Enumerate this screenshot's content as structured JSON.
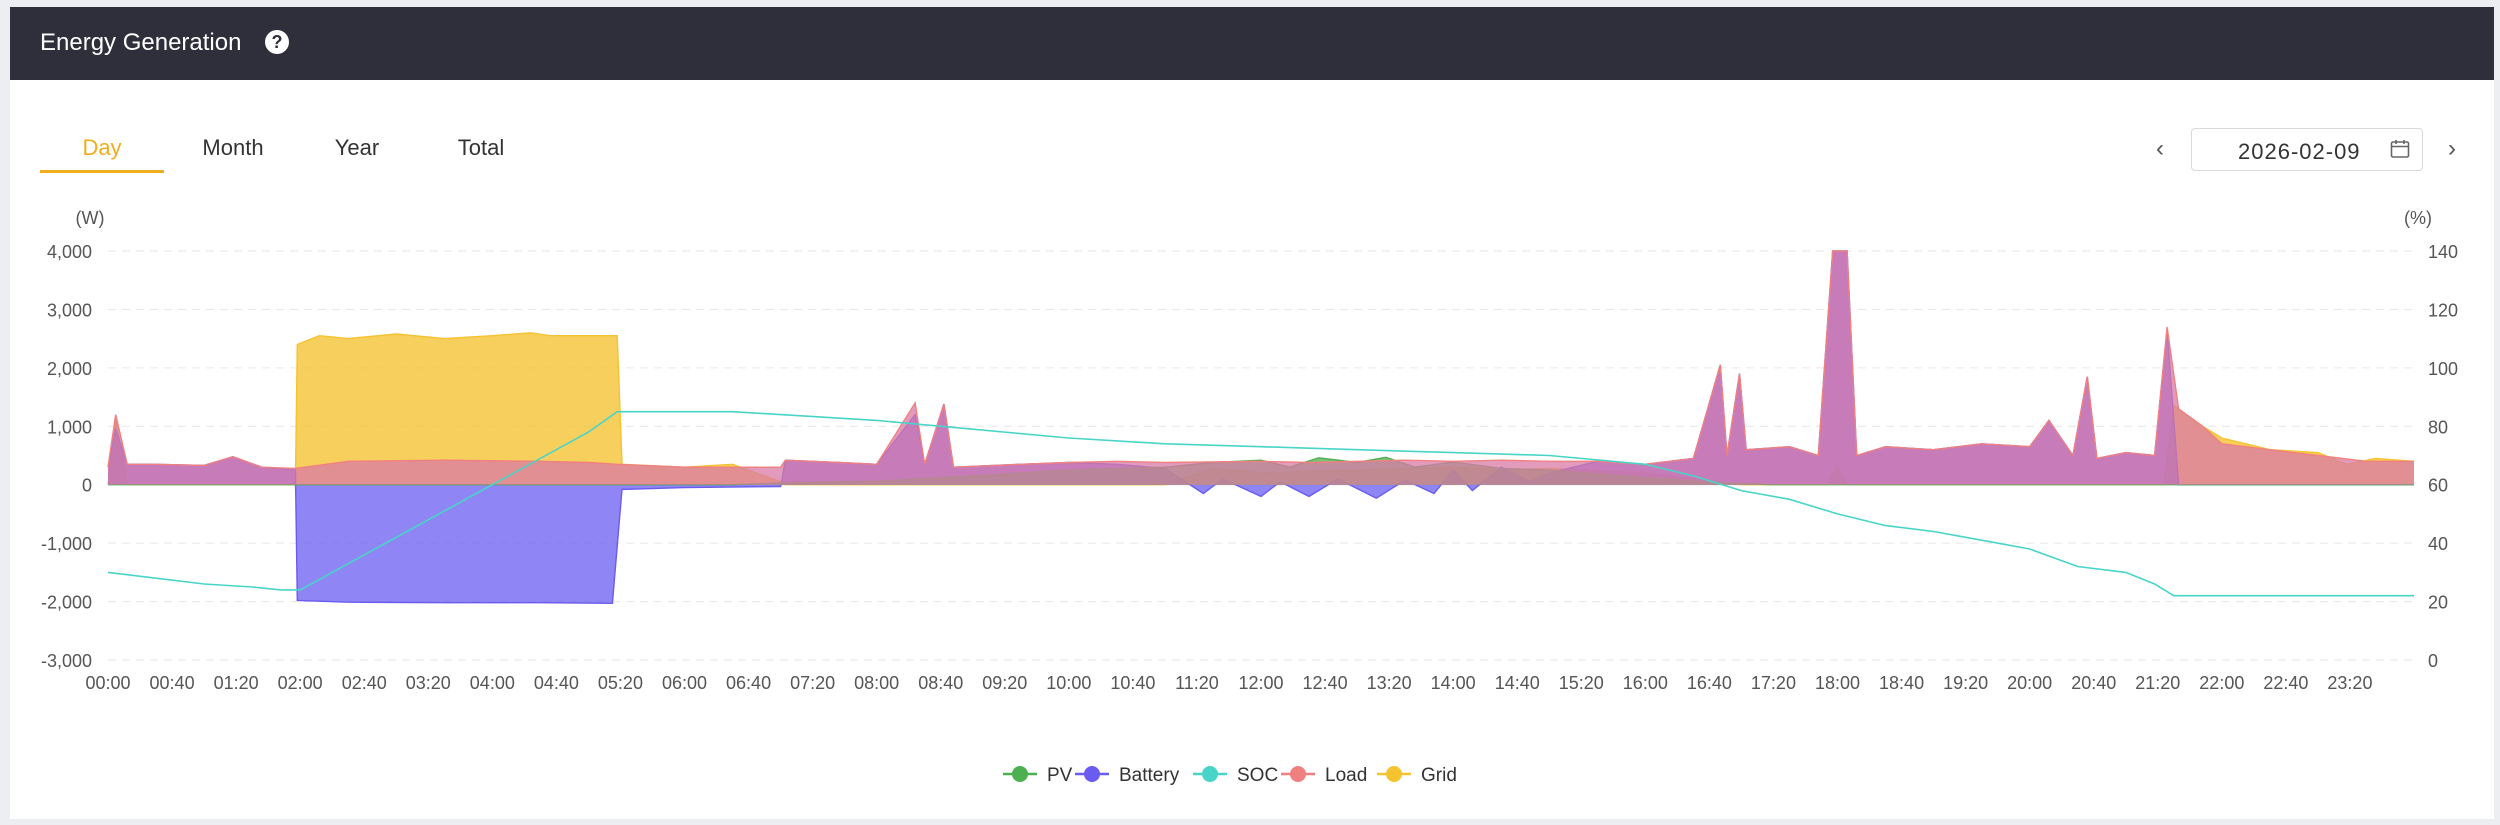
{
  "header": {
    "title": "Energy Generation",
    "help_icon": "question-circle-icon"
  },
  "tabs": [
    {
      "label": "Day",
      "active": true
    },
    {
      "label": "Month",
      "active": false
    },
    {
      "label": "Year",
      "active": false
    },
    {
      "label": "Total",
      "active": false
    }
  ],
  "date_picker": {
    "value": "2026-02-09",
    "icon": "calendar-icon",
    "prev_icon": "chevron-left-icon",
    "next_icon": "chevron-right-icon"
  },
  "colors": {
    "PV": "#4caf50",
    "Battery": "#6a5cf0",
    "SOC": "#48d5c8",
    "Load": "#f08080",
    "Grid": "#f5c230",
    "accent": "#f0ad1e",
    "header_bg": "#2f2e3b"
  },
  "chart_data": {
    "type": "area",
    "x_tick_labels": [
      "00:00",
      "00:40",
      "01:20",
      "02:00",
      "02:40",
      "03:20",
      "04:00",
      "04:40",
      "05:20",
      "06:00",
      "06:40",
      "07:20",
      "08:00",
      "08:40",
      "09:20",
      "10:00",
      "10:40",
      "11:20",
      "12:00",
      "12:40",
      "13:20",
      "14:00",
      "14:40",
      "15:20",
      "16:00",
      "16:40",
      "17:20",
      "18:00",
      "18:40",
      "19:20",
      "20:00",
      "20:40",
      "21:20",
      "22:00",
      "22:40",
      "23:20"
    ],
    "x_range_hours": [
      0,
      24
    ],
    "y_left": {
      "unit": "(W)",
      "ylim": [
        -3000,
        4000
      ],
      "ticks": [
        4000,
        3000,
        2000,
        1000,
        0,
        -1000,
        -2000,
        -3000
      ],
      "tick_labels": [
        "4,000",
        "3,000",
        "2,000",
        "1,000",
        "0",
        "-1,000",
        "-2,000",
        "-3,000"
      ]
    },
    "y_right": {
      "unit": "(%)",
      "ylim": [
        0,
        140
      ],
      "ticks": [
        140,
        120,
        100,
        80,
        60,
        40,
        20,
        0
      ],
      "tick_labels": [
        "140",
        "120",
        "100",
        "80",
        "60",
        "40",
        "20",
        "0"
      ]
    },
    "grid": true,
    "legend_position": "bottom-center",
    "series": [
      {
        "name": "PV",
        "axis": "left",
        "points": [
          [
            0,
            0
          ],
          [
            6.5,
            0
          ],
          [
            7,
            30
          ],
          [
            8,
            60
          ],
          [
            9,
            150
          ],
          [
            10,
            250
          ],
          [
            11,
            300
          ],
          [
            11.5,
            380
          ],
          [
            12,
            420
          ],
          [
            12.3,
            300
          ],
          [
            12.6,
            460
          ],
          [
            13,
            380
          ],
          [
            13.3,
            470
          ],
          [
            13.6,
            300
          ],
          [
            14,
            390
          ],
          [
            14.5,
            280
          ],
          [
            15,
            250
          ],
          [
            15.5,
            180
          ],
          [
            16,
            120
          ],
          [
            16.5,
            60
          ],
          [
            17,
            20
          ],
          [
            17.3,
            0
          ],
          [
            24,
            0
          ]
        ]
      },
      {
        "name": "Battery",
        "axis": "left",
        "points": [
          [
            0,
            300
          ],
          [
            0.08,
            950
          ],
          [
            0.2,
            350
          ],
          [
            0.5,
            350
          ],
          [
            1,
            330
          ],
          [
            1.3,
            480
          ],
          [
            1.6,
            300
          ],
          [
            1.95,
            250
          ],
          [
            1.97,
            -1980
          ],
          [
            2.5,
            -2010
          ],
          [
            3.5,
            -2020
          ],
          [
            4.5,
            -2020
          ],
          [
            5.25,
            -2030
          ],
          [
            5.35,
            -80
          ],
          [
            6,
            -50
          ],
          [
            7,
            -30
          ],
          [
            7.05,
            420
          ],
          [
            7.6,
            380
          ],
          [
            8,
            350
          ],
          [
            8.4,
            1200
          ],
          [
            8.5,
            350
          ],
          [
            8.7,
            1380
          ],
          [
            8.8,
            300
          ],
          [
            9.5,
            350
          ],
          [
            10,
            380
          ],
          [
            10.5,
            350
          ],
          [
            11,
            280
          ],
          [
            11.4,
            -150
          ],
          [
            11.6,
            100
          ],
          [
            12,
            -200
          ],
          [
            12.2,
            50
          ],
          [
            12.5,
            -200
          ],
          [
            12.8,
            100
          ],
          [
            13.2,
            -230
          ],
          [
            13.5,
            80
          ],
          [
            13.8,
            -150
          ],
          [
            14,
            250
          ],
          [
            14.2,
            -100
          ],
          [
            14.5,
            300
          ],
          [
            14.8,
            50
          ],
          [
            15,
            200
          ],
          [
            15.5,
            400
          ],
          [
            16,
            350
          ],
          [
            16.5,
            450
          ],
          [
            16.78,
            2050
          ],
          [
            16.85,
            500
          ],
          [
            16.98,
            1900
          ],
          [
            17.05,
            600
          ],
          [
            17.5,
            650
          ],
          [
            17.8,
            500
          ],
          [
            17.95,
            4000
          ],
          [
            18.1,
            4000
          ],
          [
            18.2,
            500
          ],
          [
            18.5,
            650
          ],
          [
            19,
            600
          ],
          [
            19.5,
            700
          ],
          [
            20,
            650
          ],
          [
            20.2,
            1100
          ],
          [
            20.45,
            500
          ],
          [
            20.6,
            1850
          ],
          [
            20.7,
            450
          ],
          [
            21,
            550
          ],
          [
            21.3,
            500
          ],
          [
            21.43,
            2650
          ],
          [
            21.55,
            0
          ],
          [
            24,
            0
          ]
        ]
      },
      {
        "name": "SOC",
        "axis": "right",
        "points": [
          [
            0,
            30
          ],
          [
            0.5,
            28
          ],
          [
            1,
            26
          ],
          [
            1.5,
            25
          ],
          [
            1.8,
            24
          ],
          [
            2,
            24
          ],
          [
            3,
            42
          ],
          [
            4,
            60
          ],
          [
            5,
            78
          ],
          [
            5.3,
            85
          ],
          [
            6,
            85
          ],
          [
            6.5,
            85
          ],
          [
            7,
            84
          ],
          [
            8,
            82
          ],
          [
            9,
            79
          ],
          [
            10,
            76
          ],
          [
            11,
            74
          ],
          [
            12,
            73
          ],
          [
            13,
            72
          ],
          [
            14,
            71
          ],
          [
            15,
            70
          ],
          [
            16,
            67
          ],
          [
            16.5,
            63
          ],
          [
            17,
            58
          ],
          [
            17.5,
            55
          ],
          [
            18,
            50
          ],
          [
            18.5,
            46
          ],
          [
            19,
            44
          ],
          [
            19.5,
            41
          ],
          [
            20,
            38
          ],
          [
            20.5,
            32
          ],
          [
            21,
            30
          ],
          [
            21.3,
            26
          ],
          [
            21.5,
            22
          ],
          [
            22,
            22
          ],
          [
            23,
            22
          ],
          [
            24,
            22
          ]
        ]
      },
      {
        "name": "Load",
        "axis": "left",
        "points": [
          [
            0,
            300
          ],
          [
            0.08,
            1200
          ],
          [
            0.2,
            350
          ],
          [
            0.5,
            350
          ],
          [
            1,
            330
          ],
          [
            1.3,
            480
          ],
          [
            1.6,
            300
          ],
          [
            1.95,
            280
          ],
          [
            2.5,
            400
          ],
          [
            3.5,
            420
          ],
          [
            4.5,
            400
          ],
          [
            5,
            380
          ],
          [
            5.3,
            350
          ],
          [
            6,
            300
          ],
          [
            6.5,
            300
          ],
          [
            7,
            300
          ],
          [
            7.05,
            420
          ],
          [
            7.6,
            380
          ],
          [
            8,
            350
          ],
          [
            8.4,
            1400
          ],
          [
            8.5,
            350
          ],
          [
            8.7,
            1380
          ],
          [
            8.8,
            300
          ],
          [
            9.5,
            350
          ],
          [
            10,
            380
          ],
          [
            10.5,
            400
          ],
          [
            11,
            380
          ],
          [
            12,
            400
          ],
          [
            12.5,
            380
          ],
          [
            13,
            400
          ],
          [
            13.5,
            420
          ],
          [
            14,
            400
          ],
          [
            14.5,
            420
          ],
          [
            15,
            400
          ],
          [
            15.5,
            400
          ],
          [
            16,
            350
          ],
          [
            16.5,
            450
          ],
          [
            16.78,
            2050
          ],
          [
            16.85,
            500
          ],
          [
            16.98,
            1900
          ],
          [
            17.05,
            600
          ],
          [
            17.5,
            650
          ],
          [
            17.8,
            500
          ],
          [
            17.95,
            4000
          ],
          [
            18.1,
            4000
          ],
          [
            18.2,
            500
          ],
          [
            18.5,
            650
          ],
          [
            19,
            600
          ],
          [
            19.5,
            700
          ],
          [
            20,
            650
          ],
          [
            20.2,
            1100
          ],
          [
            20.45,
            500
          ],
          [
            20.6,
            1850
          ],
          [
            20.7,
            450
          ],
          [
            21,
            550
          ],
          [
            21.3,
            500
          ],
          [
            21.43,
            2700
          ],
          [
            21.55,
            1300
          ],
          [
            21.8,
            1000
          ],
          [
            22,
            700
          ],
          [
            22.5,
            600
          ],
          [
            23,
            500
          ],
          [
            23.5,
            400
          ],
          [
            24,
            400
          ]
        ]
      },
      {
        "name": "Grid",
        "axis": "left",
        "points": [
          [
            0,
            0
          ],
          [
            0.08,
            1150
          ],
          [
            0.2,
            0
          ],
          [
            1.95,
            0
          ],
          [
            1.97,
            2400
          ],
          [
            2.2,
            2550
          ],
          [
            2.5,
            2500
          ],
          [
            3,
            2580
          ],
          [
            3.5,
            2500
          ],
          [
            4,
            2550
          ],
          [
            4.4,
            2600
          ],
          [
            4.6,
            2550
          ],
          [
            5,
            2550
          ],
          [
            5.3,
            2550
          ],
          [
            5.35,
            350
          ],
          [
            6,
            300
          ],
          [
            6.5,
            350
          ],
          [
            7,
            50
          ],
          [
            7.05,
            0
          ],
          [
            11,
            0
          ],
          [
            11.5,
            280
          ],
          [
            12,
            200
          ],
          [
            13,
            250
          ],
          [
            14,
            300
          ],
          [
            14.5,
            250
          ],
          [
            15,
            280
          ],
          [
            16,
            200
          ],
          [
            17,
            0
          ],
          [
            17.9,
            0
          ],
          [
            18,
            300
          ],
          [
            18.1,
            0
          ],
          [
            21.4,
            0
          ],
          [
            21.5,
            1350
          ],
          [
            21.8,
            1000
          ],
          [
            22,
            800
          ],
          [
            22.5,
            600
          ],
          [
            23,
            550
          ],
          [
            23.3,
            350
          ],
          [
            23.6,
            450
          ],
          [
            24,
            400
          ]
        ]
      }
    ]
  }
}
